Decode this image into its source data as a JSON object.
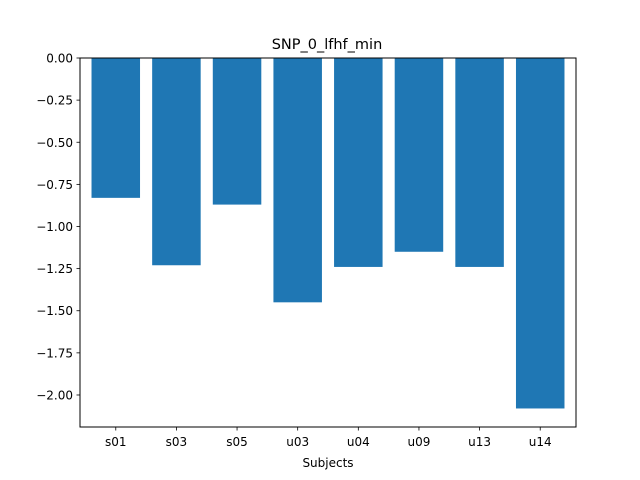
{
  "chart_data": {
    "type": "bar",
    "title": "SNP_0_lfhf_min",
    "xlabel": "Subjects",
    "ylabel": "",
    "categories": [
      "s01",
      "s03",
      "s05",
      "u03",
      "u04",
      "u09",
      "u13",
      "u14"
    ],
    "values": [
      -0.83,
      -1.23,
      -0.87,
      -1.45,
      -1.24,
      -1.15,
      -1.24,
      -2.08
    ],
    "ylim": [
      -2.19,
      0.0
    ],
    "yticks": [
      0.0,
      -0.25,
      -0.5,
      -0.75,
      -1.0,
      -1.25,
      -1.5,
      -1.75,
      -2.0
    ],
    "ytick_labels": [
      "0.00",
      "−0.25",
      "−0.50",
      "−0.75",
      "−1.00",
      "−1.25",
      "−1.50",
      "−1.75",
      "−2.00"
    ],
    "bar_color": "#1f77b4",
    "grid": false,
    "legend": "none"
  }
}
